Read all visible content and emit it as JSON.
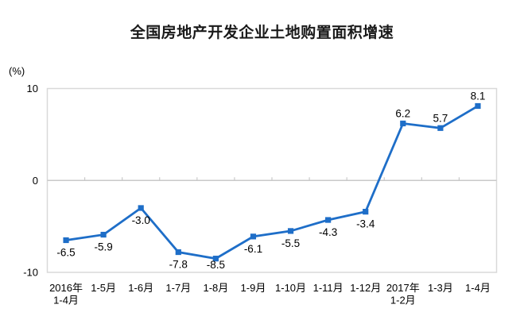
{
  "chart_data": {
    "type": "line",
    "title": "全国房地产开发企业土地购置面积增速",
    "unit_label": "(%)",
    "categories": [
      [
        "2016年",
        "1-4月"
      ],
      [
        "1-5月"
      ],
      [
        "1-6月"
      ],
      [
        "1-7月"
      ],
      [
        "1-8月"
      ],
      [
        "1-9月"
      ],
      [
        "1-10月"
      ],
      [
        "1-11月"
      ],
      [
        "1-12月"
      ],
      [
        "2017年",
        "1-2月"
      ],
      [
        "1-3月"
      ],
      [
        "1-4月"
      ]
    ],
    "values": [
      -6.5,
      -5.9,
      -3.0,
      -7.8,
      -8.5,
      -6.1,
      -5.5,
      -4.3,
      -3.4,
      6.2,
      5.7,
      8.1
    ],
    "labels": [
      "-6.5",
      "-5.9",
      "-3.0",
      "-7.8",
      "-8.5",
      "-6.1",
      "-5.5",
      "-4.3",
      "-3.4",
      "6.2",
      "5.7",
      "8.1"
    ],
    "ylim": [
      -10,
      10
    ],
    "yticks": [
      10,
      0,
      -10
    ],
    "legend": "none",
    "grid": "zero-baseline-only",
    "colors": {
      "line": "#1E6EC8",
      "marker": "#1E6EC8",
      "text": "#000000",
      "plot_border": "#D9D9D9",
      "axis_line": "#C9C9C9"
    }
  }
}
